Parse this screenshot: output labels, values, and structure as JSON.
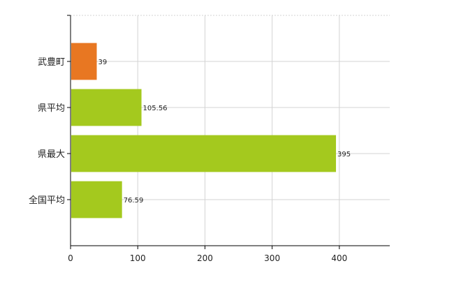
{
  "chart_data": {
    "type": "bar",
    "orientation": "horizontal",
    "title": "",
    "xlabel": "",
    "ylabel": "",
    "categories": [
      "武豊町",
      "県平均",
      "県最大",
      "全国平均"
    ],
    "values": [
      39,
      105.56,
      395,
      76.59
    ],
    "data_labels": [
      "39",
      "105.56",
      "395",
      "76.59"
    ],
    "colors": [
      "#e87722",
      "#a4c91e",
      "#a4c91e",
      "#a4c91e"
    ],
    "xlim": [
      0,
      475
    ],
    "x_ticks": [
      0,
      100,
      200,
      300,
      400
    ],
    "x_tick_labels": [
      "0",
      "100",
      "200",
      "300",
      "400"
    ],
    "grid": true,
    "legend": "none"
  }
}
